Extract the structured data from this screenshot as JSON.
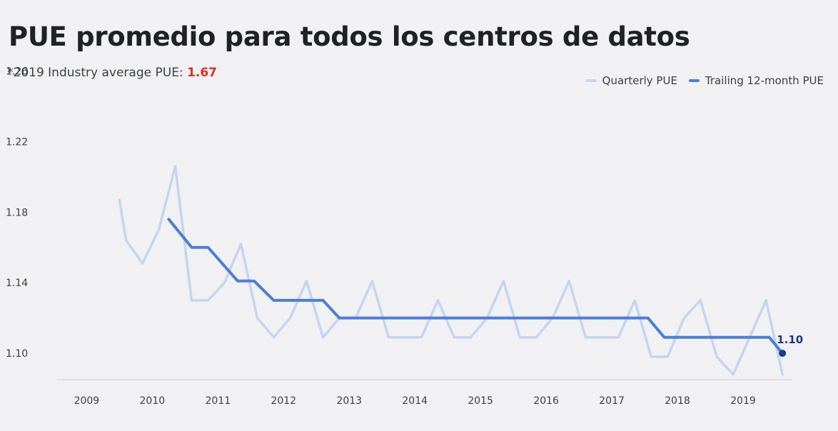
{
  "header": {
    "title": "PUE promedio para todos los centros de datos",
    "subtitle_prefix": "*2019 Industry average PUE: ",
    "subtitle_value": "1.67"
  },
  "colors": {
    "quarterly": "#c6d4ef",
    "trailing": "#4a7fd9",
    "end_marker": "#1a3a8a",
    "highlight": "#d93025",
    "axis": "#dcdcdc"
  },
  "chart_data": {
    "type": "line",
    "title": "PUE promedio para todos los centros de datos",
    "xlabel": "",
    "ylabel": "",
    "xlim": [
      2008.55,
      2019.75
    ],
    "ylim": [
      1.06,
      1.28
    ],
    "x_ticks": [
      "2009",
      "2010",
      "2011",
      "2012",
      "2013",
      "2014",
      "2015",
      "2016",
      "2017",
      "2018",
      "2019"
    ],
    "y_ticks": [
      "1.26",
      "1.22",
      "1.18",
      "1.14",
      "1.10"
    ],
    "grid": false,
    "legend_position": "top-right",
    "end_label": "1.10",
    "series": [
      {
        "name": "Quarterly PUE",
        "color_key": "quarterly",
        "x": [
          2009.5,
          2009.6,
          2009.85,
          2010.1,
          2010.35,
          2010.6,
          2010.85,
          2011.1,
          2011.35,
          2011.6,
          2011.85,
          2012.1,
          2012.35,
          2012.6,
          2012.85,
          2013.1,
          2013.35,
          2013.6,
          2013.85,
          2014.1,
          2014.35,
          2014.6,
          2014.85,
          2015.1,
          2015.35,
          2015.6,
          2015.85,
          2016.1,
          2016.35,
          2016.6,
          2016.85,
          2017.1,
          2017.35,
          2017.6,
          2017.85,
          2018.1,
          2018.35,
          2018.6,
          2018.85,
          2019.1,
          2019.35,
          2019.6
        ],
        "values": [
          1.187,
          1.164,
          1.151,
          1.17,
          1.206,
          1.13,
          1.13,
          1.14,
          1.162,
          1.12,
          1.109,
          1.12,
          1.141,
          1.109,
          1.12,
          1.12,
          1.141,
          1.109,
          1.109,
          1.109,
          1.13,
          1.109,
          1.109,
          1.12,
          1.141,
          1.109,
          1.109,
          1.12,
          1.141,
          1.109,
          1.109,
          1.109,
          1.13,
          1.098,
          1.098,
          1.12,
          1.13,
          1.098,
          1.088,
          1.109,
          1.13,
          1.088
        ]
      },
      {
        "name": "Trailing 12-month PUE",
        "color_key": "trailing",
        "x": [
          2010.25,
          2010.6,
          2010.85,
          2011.3,
          2011.55,
          2011.85,
          2012.25,
          2012.6,
          2012.85,
          2013.3,
          2014.3,
          2015.3,
          2016.3,
          2017.3,
          2017.55,
          2017.8,
          2018.3,
          2018.8,
          2019.1,
          2019.4,
          2019.6
        ],
        "values": [
          1.176,
          1.16,
          1.16,
          1.141,
          1.141,
          1.13,
          1.13,
          1.13,
          1.12,
          1.12,
          1.12,
          1.12,
          1.12,
          1.12,
          1.12,
          1.109,
          1.109,
          1.109,
          1.109,
          1.109,
          1.1
        ]
      }
    ]
  }
}
